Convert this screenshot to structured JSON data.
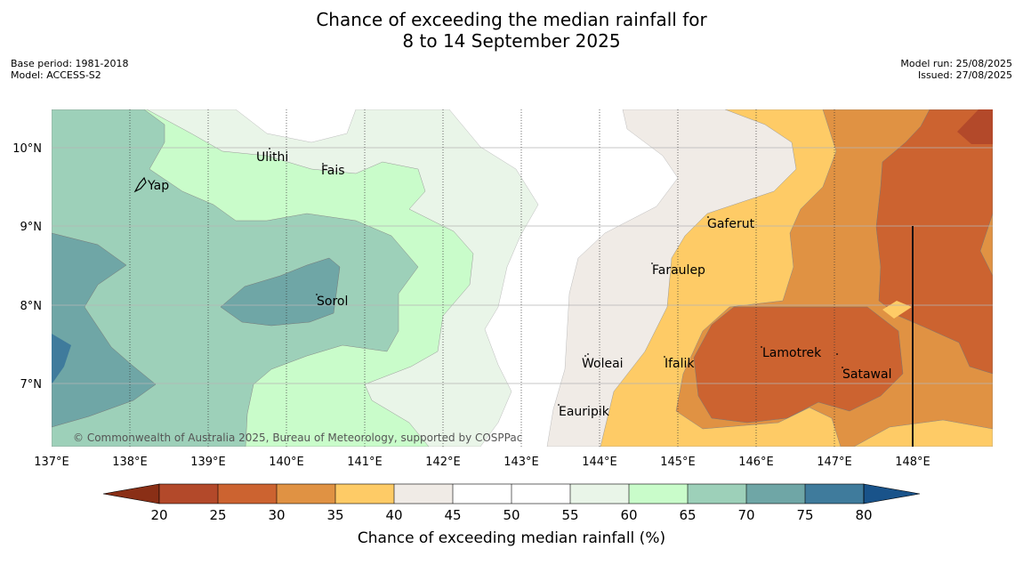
{
  "title": {
    "line1": "Chance of exceeding the median rainfall for",
    "line2": "8 to 14 September 2025"
  },
  "meta": {
    "base_period": "Base period: 1981-2018",
    "model": "Model: ACCESS-S2",
    "model_run": "Model run: 25/08/2025",
    "issued": "Issued: 27/08/2025"
  },
  "map": {
    "lon_ticks": [
      "137°E",
      "138°E",
      "139°E",
      "140°E",
      "141°E",
      "142°E",
      "143°E",
      "144°E",
      "145°E",
      "146°E",
      "147°E",
      "148°E"
    ],
    "lat_ticks": [
      "10°N",
      "9°N",
      "8°N",
      "7°N"
    ],
    "places": [
      "Yap",
      "Ulithi",
      "Fais",
      "Sorol",
      "Gaferut",
      "Faraulep",
      "Woleai",
      "Ifalik",
      "Lamotrek",
      "Satawal",
      "Eauripik"
    ],
    "credit": "© Commonwealth of Australia 2025, Bureau of Meteorology, supported by COSPPac"
  },
  "colorbar": {
    "ticks": [
      "20",
      "25",
      "30",
      "35",
      "40",
      "45",
      "50",
      "55",
      "60",
      "65",
      "70",
      "75",
      "80"
    ],
    "title": "Chance of exceeding median rainfall (%)",
    "colors": {
      "below_20": "#8a2f16",
      "20_25": "#b3492a",
      "25_30": "#cc6330",
      "30_35": "#e09243",
      "35_40": "#fecb66",
      "40_45": "#f0ebe6",
      "45_50": "#ffffff",
      "50_55": "#ffffff",
      "55_60": "#e9f5e8",
      "60_65": "#c9fcca",
      "65_70": "#9dd0b9",
      "70_75": "#6fa6a6",
      "75_80": "#3f7b9c",
      "above_80": "#19538a"
    }
  }
}
